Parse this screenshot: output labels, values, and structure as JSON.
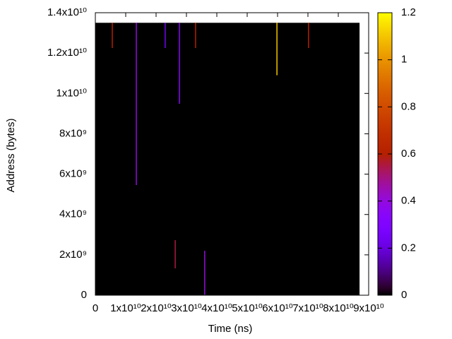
{
  "chart_data": {
    "type": "heatmap",
    "xlabel": "Time (ns)",
    "ylabel": "Address (bytes)",
    "xlim": [
      0,
      90000000000
    ],
    "ylim": [
      0,
      14000000000
    ],
    "xticks": [
      0,
      {
        "value": 10000000000,
        "label": "1x10¹⁰"
      },
      {
        "value": 20000000000,
        "label": "2x10¹⁰"
      },
      {
        "value": 30000000000,
        "label": "3x10¹⁰"
      },
      {
        "value": 40000000000,
        "label": "4x10¹⁰"
      },
      {
        "value": 50000000000,
        "label": "5x10¹⁰"
      },
      {
        "value": 60000000000,
        "label": "6x10¹⁰"
      },
      {
        "value": 70000000000,
        "label": "7x10¹⁰"
      },
      {
        "value": 80000000000,
        "label": "8x10¹⁰"
      },
      {
        "value": 90000000000,
        "label": "9x10¹⁰"
      }
    ],
    "yticks": [
      0,
      {
        "value": 2000000000,
        "label": "2x10⁹"
      },
      {
        "value": 4000000000,
        "label": "4x10⁹"
      },
      {
        "value": 6000000000,
        "label": "6x10⁹"
      },
      {
        "value": 8000000000,
        "label": "8x10⁹"
      },
      {
        "value": 10000000000,
        "label": "1x10¹⁰"
      },
      {
        "value": 12000000000,
        "label": "1.2x10¹⁰"
      },
      {
        "value": 14000000000,
        "label": "1.4x10¹⁰"
      }
    ],
    "data_xlim": [
      0,
      87000000000
    ],
    "data_ylim": [
      0,
      13500000000
    ],
    "background_value": 0,
    "segments": [
      {
        "x": 5580000000,
        "y0": 12250000000,
        "y1": 13500000000,
        "value": 0.6
      },
      {
        "x": 13500000000,
        "y0": 5460000000,
        "y1": 13500000000,
        "value": 0.4
      },
      {
        "x": 23000000000,
        "y0": 12250000000,
        "y1": 13500000000,
        "value": 0.25
      },
      {
        "x": 27700000000,
        "y0": 9490000000,
        "y1": 13500000000,
        "value": 0.35
      },
      {
        "x": 33000000000,
        "y0": 12250000000,
        "y1": 13500000000,
        "value": 0.6
      },
      {
        "x": 59800000000,
        "y0": 10900000000,
        "y1": 13500000000,
        "value": 1.1
      },
      {
        "x": 70200000000,
        "y0": 12250000000,
        "y1": 13500000000,
        "value": 0.6
      },
      {
        "x": 26300000000,
        "y0": 1330000000,
        "y1": 2730000000,
        "value": 0.55
      },
      {
        "x": 36000000000,
        "y0": 0,
        "y1": 2200000000,
        "value": 0.4
      }
    ],
    "palette": "rgbformulae 7,5,15",
    "clim": [
      0,
      1.2
    ],
    "cticks": [
      0,
      0.2,
      0.4,
      0.6,
      0.8,
      1,
      1.2
    ]
  }
}
